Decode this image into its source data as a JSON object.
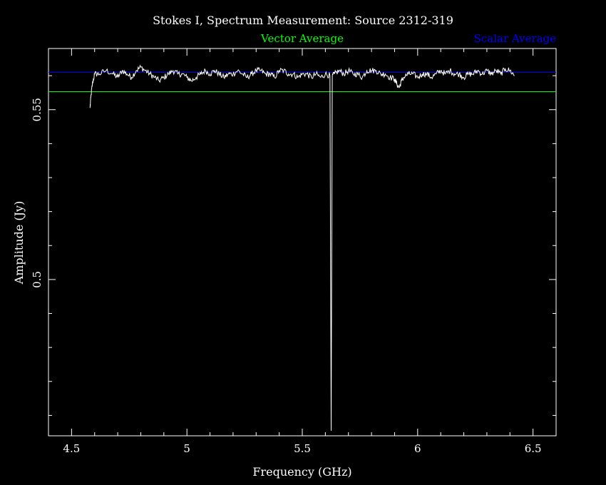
{
  "chart_data": {
    "type": "line",
    "title": "Stokes I, Spectrum Measurement: Source 2312-319",
    "xlabel": "Frequency (GHz)",
    "ylabel": "Amplitude (Jy)",
    "xlim": [
      4.4,
      6.6
    ],
    "ylim": [
      0.454,
      0.568
    ],
    "x_ticks": [
      4.5,
      5,
      5.5,
      6,
      6.5
    ],
    "x_tick_labels": [
      "4.5",
      "5",
      "5.5",
      "6",
      "6.5"
    ],
    "y_ticks": [
      0.5,
      0.55
    ],
    "y_tick_labels": [
      "0.5",
      "0.55"
    ],
    "grid": false,
    "background": "#000000",
    "legend": [
      {
        "label": "Vector Average",
        "color": "#00ff00"
      },
      {
        "label": "Scalar Average",
        "color": "#0000ff"
      }
    ],
    "reference_lines": [
      {
        "name": "Vector Average",
        "y": 0.5553,
        "color": "#00ff00"
      },
      {
        "name": "Scalar Average",
        "y": 0.561,
        "color": "#0000ff"
      }
    ],
    "series": [
      {
        "color": "#ffffff",
        "x": [
          4.58,
          4.585,
          4.59,
          4.6,
          4.62,
          4.65,
          4.68,
          4.7,
          4.72,
          4.74,
          4.76,
          4.78,
          4.8,
          4.82,
          4.84,
          4.86,
          4.88,
          4.9,
          4.92,
          4.94,
          4.96,
          4.98,
          5.0,
          5.02,
          5.04,
          5.06,
          5.08,
          5.1,
          5.12,
          5.14,
          5.16,
          5.18,
          5.2,
          5.22,
          5.24,
          5.26,
          5.28,
          5.3,
          5.32,
          5.34,
          5.36,
          5.38,
          5.4,
          5.42,
          5.44,
          5.46,
          5.48,
          5.5,
          5.52,
          5.54,
          5.56,
          5.58,
          5.6,
          5.62,
          5.625,
          5.63,
          5.64,
          5.66,
          5.68,
          5.7,
          5.72,
          5.74,
          5.76,
          5.78,
          5.8,
          5.82,
          5.84,
          5.86,
          5.88,
          5.9,
          5.91,
          5.92,
          5.93,
          5.94,
          5.96,
          5.98,
          6.0,
          6.02,
          6.04,
          6.06,
          6.08,
          6.1,
          6.12,
          6.14,
          6.16,
          6.18,
          6.2,
          6.22,
          6.24,
          6.26,
          6.28,
          6.3,
          6.32,
          6.34,
          6.36,
          6.38,
          6.4,
          6.42
        ],
        "y": [
          0.5505,
          0.5545,
          0.5575,
          0.5605,
          0.5605,
          0.5615,
          0.5605,
          0.5595,
          0.5615,
          0.5605,
          0.5595,
          0.5615,
          0.5625,
          0.5615,
          0.5605,
          0.5595,
          0.5585,
          0.5595,
          0.5605,
          0.5615,
          0.5605,
          0.5605,
          0.5595,
          0.5585,
          0.5595,
          0.5605,
          0.5615,
          0.5605,
          0.5615,
          0.5605,
          0.5595,
          0.5605,
          0.5605,
          0.5615,
          0.5605,
          0.5595,
          0.5605,
          0.5615,
          0.5615,
          0.5605,
          0.5605,
          0.5595,
          0.5615,
          0.5615,
          0.5605,
          0.5605,
          0.5595,
          0.5605,
          0.5605,
          0.5595,
          0.5605,
          0.5595,
          0.5605,
          0.56,
          0.4555,
          0.56,
          0.5605,
          0.5615,
          0.5605,
          0.5615,
          0.5605,
          0.5605,
          0.5595,
          0.5615,
          0.5615,
          0.5615,
          0.5605,
          0.5605,
          0.5595,
          0.559,
          0.5575,
          0.5565,
          0.5585,
          0.5595,
          0.5605,
          0.5605,
          0.5595,
          0.5605,
          0.5605,
          0.5595,
          0.5605,
          0.5615,
          0.5605,
          0.5615,
          0.5605,
          0.5605,
          0.5595,
          0.5605,
          0.5605,
          0.5615,
          0.5605,
          0.5615,
          0.5605,
          0.5615,
          0.5605,
          0.562,
          0.5615,
          0.56
        ]
      }
    ]
  }
}
